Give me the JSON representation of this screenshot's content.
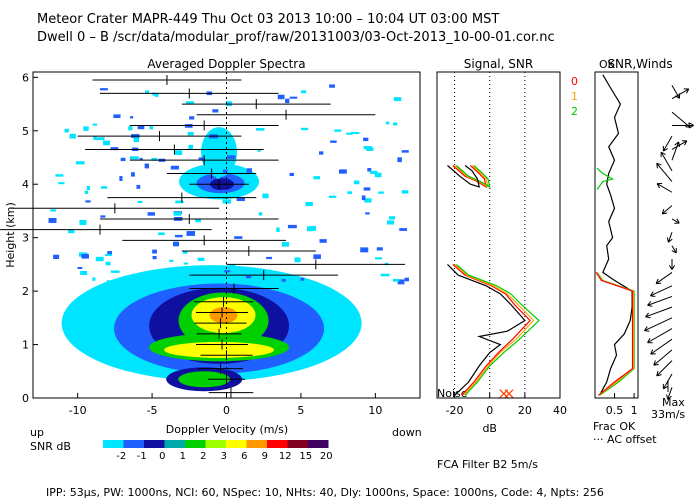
{
  "header": {
    "line1": "Meteor Crater   MAPR-449   Thu Oct 03 2013 10:00 – 10:04 UT 03:00 MST",
    "line2": "Dwell  0 –  B   /scr/data/modular_prof/raw/20131003/03-Oct-2013_10-00-01.cor.nc"
  },
  "footer": "IPP: 53μs,  PW: 1000ns,  NCI: 60,  NSpec: 10, NHts: 40,  Dly: 1000ns,  Space: 1000ns,  Code: 4,  Npts: 256",
  "fca_filter": "FCA Filter B2   5m/s",
  "labels": {
    "up": "up",
    "down": "down",
    "snr_db": "SNR dB",
    "noise": "Noise",
    "ok": "OK",
    "frac_ok": "Frac OK",
    "ac_offset": "··· AC offset",
    "max": "Max",
    "max_speed": "33m/s"
  },
  "colors": {
    "red": "#ff0000",
    "orange": "#ffa500",
    "green": "#00cc00",
    "cyan": "#00e5ff",
    "yellow": "#ffff00"
  },
  "colorbar": {
    "labels": [
      "-2",
      "-1",
      "0",
      "1",
      "2",
      "3",
      "6",
      "9",
      "12",
      "15",
      "20"
    ],
    "colors": [
      "#00e5ff",
      "#2060ff",
      "#1010a0",
      "#00aaaa",
      "#00d000",
      "#a0ff00",
      "#ffff00",
      "#ff9900",
      "#ff0000",
      "#800020",
      "#400060"
    ]
  },
  "chart_data": [
    {
      "type": "heatmap",
      "title": "Averaged Doppler Spectra",
      "xlabel": "Doppler Velocity (m/s)",
      "ylabel": "Height (km)",
      "xlim": [
        -13,
        13
      ],
      "ylim": [
        0,
        6.1
      ],
      "xticks": [
        -10,
        -5,
        0,
        5,
        10
      ],
      "yticks": [
        0,
        1,
        2,
        3,
        4,
        5,
        6
      ],
      "mean_velocity_profile": [
        {
          "h": 0.1,
          "v": 0.3,
          "w": 3
        },
        {
          "h": 0.35,
          "v": 0.0,
          "w": 2.5
        },
        {
          "h": 0.55,
          "v": -0.4,
          "w": 3
        },
        {
          "h": 0.8,
          "v": 0.0,
          "w": 3.5
        },
        {
          "h": 1.0,
          "v": -0.3,
          "w": 3.5
        },
        {
          "h": 1.2,
          "v": -0.5,
          "w": 3
        },
        {
          "h": 1.4,
          "v": -0.4,
          "w": 3.5
        },
        {
          "h": 1.6,
          "v": -0.3,
          "w": 3.5
        },
        {
          "h": 1.8,
          "v": -0.2,
          "w": 4
        },
        {
          "h": 2.05,
          "v": 0.5,
          "w": 6
        },
        {
          "h": 2.3,
          "v": 2.5,
          "w": 10
        },
        {
          "h": 2.5,
          "v": 6.0,
          "w": 12
        },
        {
          "h": 2.75,
          "v": 1.5,
          "w": 9
        },
        {
          "h": 2.95,
          "v": -1.5,
          "w": 11
        },
        {
          "h": 3.15,
          "v": -8.5,
          "w": 15
        },
        {
          "h": 3.35,
          "v": -2.5,
          "w": 12
        },
        {
          "h": 3.55,
          "v": -7.5,
          "w": 14
        },
        {
          "h": 3.75,
          "v": -3.0,
          "w": 10
        },
        {
          "h": 4.0,
          "v": -0.5,
          "w": 4
        },
        {
          "h": 4.2,
          "v": -1.0,
          "w": 6
        },
        {
          "h": 4.45,
          "v": -1.5,
          "w": 10
        },
        {
          "h": 4.65,
          "v": -3.5,
          "w": 12
        },
        {
          "h": 4.9,
          "v": -4.5,
          "w": 11
        },
        {
          "h": 5.1,
          "v": -1.5,
          "w": 10
        },
        {
          "h": 5.3,
          "v": 4.0,
          "w": 12
        },
        {
          "h": 5.5,
          "v": 2.0,
          "w": 10
        },
        {
          "h": 5.7,
          "v": -2.5,
          "w": 12
        },
        {
          "h": 5.95,
          "v": -4.0,
          "w": 10
        }
      ]
    },
    {
      "type": "line",
      "title": "Signal, SNR",
      "xlabel": "dB",
      "xlim": [
        -30,
        40
      ],
      "ylim": [
        0,
        6.1
      ],
      "xticks": [
        -20,
        0,
        20,
        40
      ],
      "series": [
        {
          "name": "0",
          "color": "#ff0000",
          "points": [
            [
              -16,
              0.05
            ],
            [
              -9,
              0.3
            ],
            [
              -2,
              0.6
            ],
            [
              5,
              0.85
            ],
            [
              13,
              1.1
            ],
            [
              23,
              1.45
            ],
            [
              14,
              1.75
            ],
            [
              9,
              1.95
            ],
            [
              1,
              2.1
            ],
            [
              -14,
              2.3
            ],
            [
              -21,
              2.5
            ],
            [
              null,
              2.6
            ],
            [
              -21,
              4.35
            ],
            [
              -14,
              4.15
            ],
            [
              -7,
              4.05
            ],
            [
              -2,
              3.95
            ],
            [
              -3,
              4.1
            ],
            [
              -6,
              4.2
            ],
            [
              -11,
              4.35
            ]
          ]
        },
        {
          "name": "1",
          "color": "#ffa500",
          "points": [
            [
              -15,
              0.05
            ],
            [
              -8,
              0.3
            ],
            [
              -1,
              0.6
            ],
            [
              6,
              0.85
            ],
            [
              15,
              1.1
            ],
            [
              25,
              1.45
            ],
            [
              16,
              1.75
            ],
            [
              10,
              1.95
            ],
            [
              2,
              2.1
            ],
            [
              -13,
              2.3
            ],
            [
              -20,
              2.5
            ],
            [
              null,
              2.6
            ],
            [
              -20,
              4.35
            ],
            [
              -13,
              4.15
            ],
            [
              -6,
              4.05
            ],
            [
              -1,
              3.95
            ],
            [
              -2,
              4.1
            ],
            [
              -5,
              4.2
            ],
            [
              -10,
              4.35
            ]
          ]
        },
        {
          "name": "2",
          "color": "#00cc00",
          "points": [
            [
              -14,
              0.05
            ],
            [
              -7,
              0.3
            ],
            [
              0,
              0.6
            ],
            [
              8,
              0.85
            ],
            [
              17,
              1.1
            ],
            [
              28,
              1.45
            ],
            [
              18,
              1.75
            ],
            [
              12,
              1.95
            ],
            [
              4,
              2.1
            ],
            [
              -12,
              2.3
            ],
            [
              -19,
              2.5
            ],
            [
              null,
              2.6
            ],
            [
              -19,
              4.35
            ],
            [
              -12,
              4.15
            ],
            [
              -5,
              4.05
            ],
            [
              0,
              3.95
            ],
            [
              -1,
              4.1
            ],
            [
              -4,
              4.2
            ],
            [
              -9,
              4.35
            ]
          ]
        },
        {
          "name": "signal",
          "color": "#000000",
          "points": [
            [
              -20,
              0.05
            ],
            [
              -12,
              0.3
            ],
            [
              -6,
              0.6
            ],
            [
              0,
              0.85
            ],
            [
              6,
              1.0
            ],
            [
              -6,
              1.15
            ],
            [
              10,
              1.25
            ],
            [
              20,
              1.45
            ],
            [
              12,
              1.75
            ],
            [
              6,
              1.95
            ],
            [
              -2,
              2.1
            ],
            [
              -18,
              2.3
            ],
            [
              -24,
              2.5
            ],
            [
              null,
              2.6
            ],
            [
              -24,
              4.35
            ],
            [
              -17,
              4.15
            ],
            [
              -11,
              4.0
            ],
            [
              -6,
              3.95
            ],
            [
              -7,
              4.1
            ],
            [
              -10,
              4.25
            ],
            [
              -14,
              4.35
            ]
          ]
        }
      ],
      "noise_markers": [
        8,
        11
      ]
    },
    {
      "type": "line",
      "title": "SNR,Winds",
      "xlabel": "Frac OK",
      "xlim": [
        0,
        1.1
      ],
      "xticks": [
        0.5,
        1
      ],
      "series": [
        {
          "name": "frac_ok",
          "color": "#000000",
          "points": [
            [
              0.15,
              0.1
            ],
            [
              0.3,
              0.3
            ],
            [
              0.4,
              0.55
            ],
            [
              0.55,
              0.8
            ],
            [
              0.5,
              1.0
            ],
            [
              0.75,
              1.2
            ],
            [
              0.9,
              1.45
            ],
            [
              0.95,
              1.7
            ],
            [
              0.95,
              2.0
            ],
            [
              0.5,
              2.2
            ],
            [
              0.2,
              2.35
            ],
            [
              0.35,
              2.6
            ],
            [
              0.3,
              2.85
            ],
            [
              0.45,
              3.0
            ],
            [
              0.35,
              3.3
            ],
            [
              0.5,
              3.55
            ],
            [
              0.4,
              3.8
            ],
            [
              0.3,
              4.0
            ],
            [
              0.35,
              4.2
            ],
            [
              0.5,
              4.45
            ],
            [
              0.35,
              4.7
            ],
            [
              0.6,
              4.95
            ],
            [
              0.5,
              5.25
            ],
            [
              0.65,
              5.5
            ],
            [
              0.4,
              5.8
            ],
            [
              0.2,
              6.05
            ]
          ]
        },
        {
          "name": "snr_green",
          "color": "#00cc00",
          "points": [
            [
              0.12,
              0.05
            ],
            [
              0.6,
              0.3
            ],
            [
              1.0,
              0.55
            ],
            [
              1.0,
              2.0
            ],
            [
              0.2,
              2.2
            ],
            [
              0.05,
              2.35
            ],
            [
              null,
              2.5
            ],
            [
              0.05,
              3.9
            ],
            [
              0.2,
              4.05
            ],
            [
              0.45,
              4.1
            ],
            [
              0.2,
              4.2
            ],
            [
              0.05,
              4.3
            ]
          ]
        },
        {
          "name": "snr_orange",
          "color": "#ffa500",
          "points": [
            [
              0.1,
              0.05
            ],
            [
              0.55,
              0.3
            ],
            [
              0.98,
              0.55
            ],
            [
              0.98,
              2.0
            ],
            [
              0.18,
              2.2
            ],
            [
              0.04,
              2.35
            ]
          ]
        },
        {
          "name": "snr_red",
          "color": "#ff0000",
          "points": [
            [
              0.09,
              0.05
            ],
            [
              0.5,
              0.3
            ],
            [
              0.96,
              0.55
            ],
            [
              0.96,
              2.0
            ],
            [
              0.16,
              2.2
            ],
            [
              0.03,
              2.35
            ]
          ]
        }
      ]
    },
    {
      "type": "barbs",
      "title": "Winds",
      "winds": [
        {
          "h": 0.2,
          "dir": 200,
          "spd": 4
        },
        {
          "h": 0.45,
          "dir": 210,
          "spd": 6
        },
        {
          "h": 0.7,
          "dir": 225,
          "spd": 8
        },
        {
          "h": 0.9,
          "dir": 230,
          "spd": 9
        },
        {
          "h": 1.1,
          "dir": 235,
          "spd": 10
        },
        {
          "h": 1.3,
          "dir": 240,
          "spd": 11
        },
        {
          "h": 1.5,
          "dir": 245,
          "spd": 12
        },
        {
          "h": 1.7,
          "dir": 250,
          "spd": 11
        },
        {
          "h": 1.9,
          "dir": 250,
          "spd": 10
        },
        {
          "h": 2.1,
          "dir": 245,
          "spd": 9
        },
        {
          "h": 2.35,
          "dir": 235,
          "spd": 7
        },
        {
          "h": 2.6,
          "dir": 180,
          "spd": 3
        },
        {
          "h": 2.85,
          "dir": 150,
          "spd": 2
        },
        {
          "h": 3.1,
          "dir": 200,
          "spd": 3
        },
        {
          "h": 3.35,
          "dir": 120,
          "spd": 2
        },
        {
          "h": 3.6,
          "dir": 230,
          "spd": 4
        },
        {
          "h": 3.85,
          "dir": 300,
          "spd": 6
        },
        {
          "h": 4.05,
          "dir": 320,
          "spd": 9
        },
        {
          "h": 4.25,
          "dir": 330,
          "spd": 8
        },
        {
          "h": 4.45,
          "dir": 20,
          "spd": 7
        },
        {
          "h": 4.65,
          "dir": 60,
          "spd": 6
        },
        {
          "h": 4.9,
          "dir": 210,
          "spd": 6
        },
        {
          "h": 5.1,
          "dir": 90,
          "spd": 8
        },
        {
          "h": 5.35,
          "dir": 130,
          "spd": 9
        },
        {
          "h": 5.6,
          "dir": 60,
          "spd": 7
        },
        {
          "h": 5.85,
          "dir": 150,
          "spd": 5
        }
      ]
    }
  ]
}
